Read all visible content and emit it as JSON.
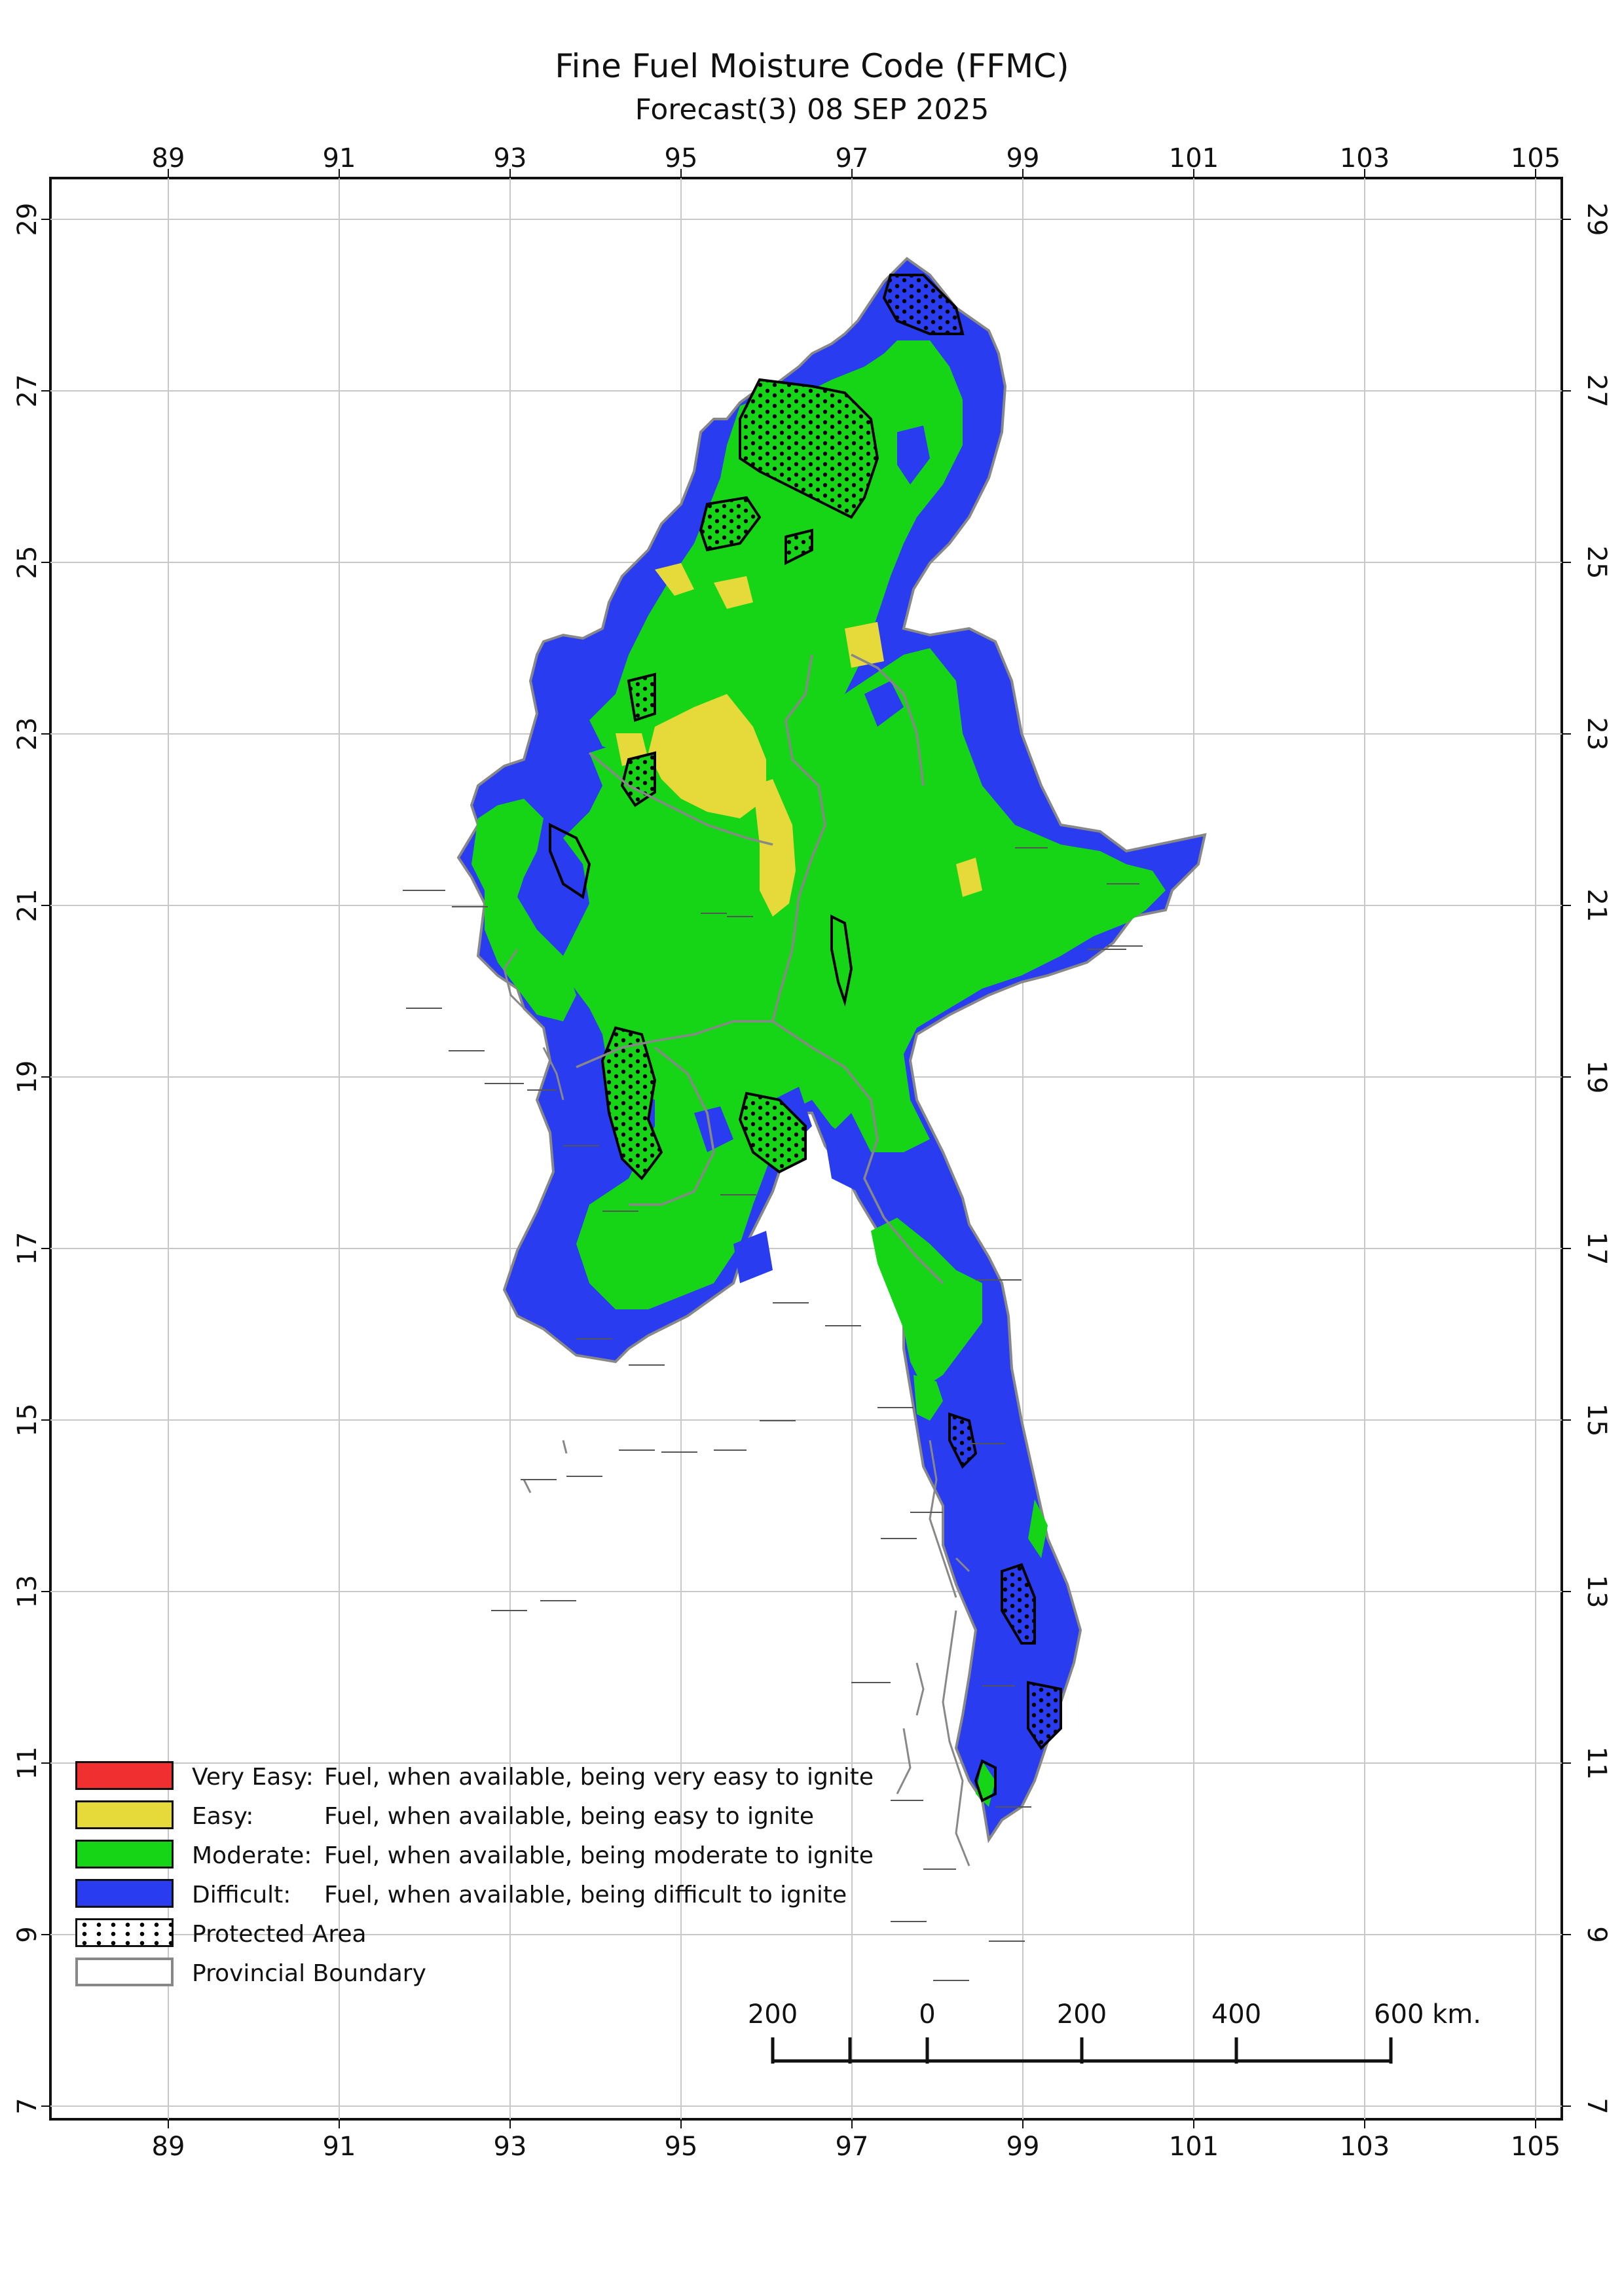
{
  "map": {
    "title": "Fine Fuel Moisture Code (FFMC)",
    "subtitle": "Forecast(3) 08 SEP 2025",
    "lon_ticks": [
      "89",
      "91",
      "93",
      "95",
      "97",
      "99",
      "101",
      "103",
      "105"
    ],
    "lat_ticks": [
      "29",
      "27",
      "25",
      "23",
      "21",
      "19",
      "17",
      "15",
      "13",
      "11",
      "9",
      "7"
    ],
    "colors": {
      "very_easy": "#f03030",
      "easy": "#e6d93a",
      "moderate": "#16d416",
      "difficult": "#2a3cf0",
      "boundary": "#888888"
    }
  },
  "legend": {
    "items": [
      {
        "name": "Very Easy:",
        "desc": "Fuel, when available, being very easy to ignite"
      },
      {
        "name": "Easy:",
        "desc": "Fuel, when available, being easy to ignite"
      },
      {
        "name": "Moderate:",
        "desc": "Fuel, when available, being moderate to ignite"
      },
      {
        "name": "Difficult:",
        "desc": "Fuel, when available, being difficult to ignite"
      },
      {
        "name": "Protected Area",
        "desc": ""
      },
      {
        "name": "Provincial Boundary",
        "desc": ""
      }
    ]
  },
  "scale_bar": {
    "labels": [
      "200",
      "0",
      "200",
      "400",
      "600 km."
    ]
  }
}
